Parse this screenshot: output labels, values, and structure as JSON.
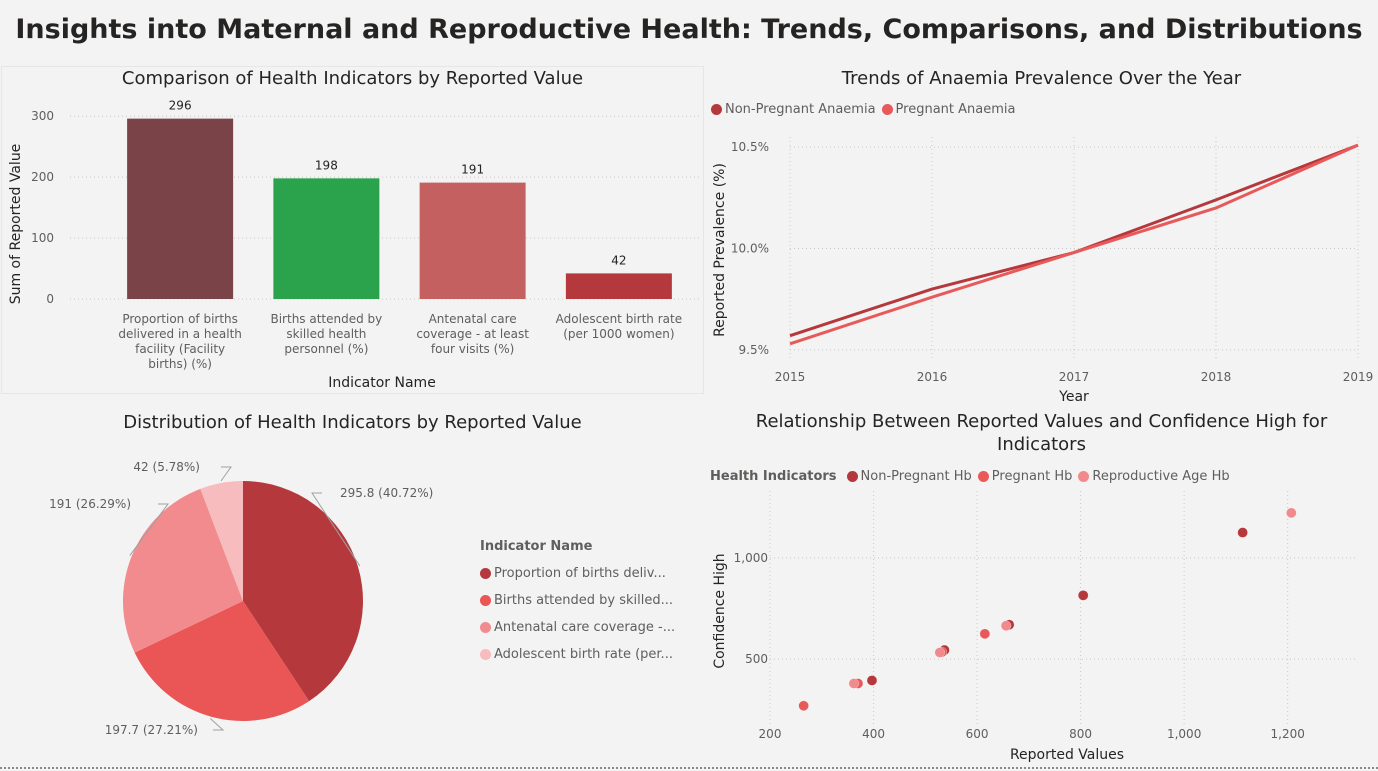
{
  "page": {
    "title": "Insights into Maternal and Reproductive Health: Trends, Comparisons, and Distributions"
  },
  "chart_data": [
    {
      "id": "bar",
      "type": "bar",
      "title": "Comparison of Health Indicators by Reported Value",
      "xlabel": "Indicator Name",
      "ylabel": "Sum of Reported Value",
      "ylim": [
        0,
        320
      ],
      "yticks": [
        0,
        100,
        200,
        300
      ],
      "grid": true,
      "categories": [
        [
          "Proportion of births",
          "delivered in a health",
          "facility (Facility",
          "births) (%)"
        ],
        [
          "Births attended by",
          "skilled health",
          "personnel (%)"
        ],
        [
          "Antenatal care",
          "coverage - at least",
          "four visits (%)"
        ],
        [
          "Adolescent birth rate",
          "(per 1000 women)"
        ]
      ],
      "values": [
        296,
        198,
        191,
        42
      ],
      "data_labels": [
        "296",
        "198",
        "191",
        "42"
      ],
      "colors": [
        "#7a4348",
        "#2ba24c",
        "#c46060",
        "#b5383c"
      ]
    },
    {
      "id": "line",
      "type": "line",
      "title": "Trends of Anaemia Prevalence Over the Year",
      "xlabel": "Year",
      "ylabel": "Reported Prevalence (%)",
      "x": [
        2015,
        2016,
        2017,
        2018,
        2019
      ],
      "ylim": [
        9.45,
        10.55
      ],
      "yticks": [
        9.5,
        10.0,
        10.5
      ],
      "ytick_labels": [
        "9.5%",
        "10.0%",
        "10.5%"
      ],
      "grid": true,
      "legend_position": "top-left",
      "series": [
        {
          "name": "Non-Pregnant Anaemia",
          "values": [
            9.57,
            9.8,
            9.98,
            10.24,
            10.51
          ],
          "color": "#b5383c"
        },
        {
          "name": "Pregnant Anaemia",
          "values": [
            9.53,
            9.76,
            9.98,
            10.2,
            10.51
          ],
          "color": "#e85a5a"
        }
      ]
    },
    {
      "id": "pie",
      "type": "pie",
      "title": "Distribution of Health Indicators by Reported Value",
      "legend_title": "Indicator Name",
      "legend_position": "right",
      "slices": [
        {
          "name": "Proportion of births deliv...",
          "value": 295.8,
          "label": "295.8 (40.72%)",
          "color": "#b5383c"
        },
        {
          "name": "Births attended by skilled...",
          "value": 197.7,
          "label": "197.7 (27.21%)",
          "color": "#ea5656"
        },
        {
          "name": "Antenatal care coverage -...",
          "value": 191,
          "label": "191 (26.29%)",
          "color": "#f28b8e"
        },
        {
          "name": "Adolescent birth rate (per...",
          "value": 42,
          "label": "42 (5.78%)",
          "color": "#f7bcbe"
        }
      ]
    },
    {
      "id": "scatter",
      "type": "scatter",
      "title": [
        "Relationship Between Reported Values and Confidence High for",
        "Indicators"
      ],
      "xlabel": "Reported Values",
      "ylabel": "Confidence High",
      "legend_title": "Health Indicators",
      "legend_position": "top-left",
      "xlim": [
        200,
        1330
      ],
      "ylim": [
        180,
        1330
      ],
      "xticks": [
        200,
        400,
        600,
        800,
        1000,
        1200
      ],
      "xtick_labels": [
        "200",
        "400",
        "600",
        "800",
        "1,000",
        "1,200"
      ],
      "yticks": [
        500,
        1000
      ],
      "ytick_labels": [
        "500",
        "1,000"
      ],
      "grid": true,
      "series": [
        {
          "name": "Non-Pregnant Hb",
          "color": "#b5383c",
          "points": [
            [
              397,
              395
            ],
            [
              537,
              545
            ],
            [
              662,
              670
            ],
            [
              805,
              815
            ],
            [
              1113,
              1125
            ]
          ]
        },
        {
          "name": "Pregnant Hb",
          "color": "#e85a5a",
          "points": [
            [
              265,
              270
            ],
            [
              370,
              380
            ],
            [
              615,
              625
            ],
            [
              532,
              535
            ]
          ]
        },
        {
          "name": "Reproductive Age Hb",
          "color": "#f08a8d",
          "points": [
            [
              362,
              380
            ],
            [
              528,
              533
            ],
            [
              656,
              665
            ],
            [
              1207,
              1222
            ]
          ]
        }
      ]
    }
  ]
}
